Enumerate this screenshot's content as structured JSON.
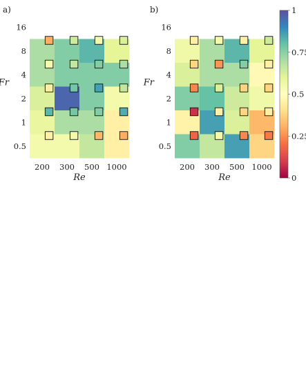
{
  "chart_data": [
    {
      "type": "heatmap",
      "panel_label": "a)",
      "xlabel": "Re",
      "ylabel": "Fr",
      "x_ticklabels": [
        "200",
        "300",
        "500",
        "1000"
      ],
      "y_ticklabels": [
        "16",
        "8",
        "4",
        "2",
        "1",
        "0.5"
      ],
      "rows_Fr_top_to_bottom": [
        "8",
        "4",
        "2",
        "1",
        "0.5"
      ],
      "cells": [
        [
          0.7,
          0.76,
          0.82,
          0.6
        ],
        [
          0.7,
          0.76,
          0.76,
          0.76
        ],
        [
          0.62,
          0.96,
          0.76,
          0.55
        ],
        [
          0.58,
          0.7,
          0.7,
          0.45
        ],
        [
          0.55,
          0.55,
          0.66,
          0.45
        ]
      ],
      "square_markers": [
        [
          0.3,
          0.64,
          0.55,
          0.62
        ],
        [
          0.55,
          0.66,
          0.76,
          0.7
        ],
        [
          0.45,
          0.78,
          0.86,
          0.66
        ],
        [
          0.82,
          0.78,
          0.76,
          0.84
        ],
        [
          0.45,
          0.55,
          0.32,
          0.3
        ]
      ]
    },
    {
      "type": "heatmap",
      "panel_label": "b)",
      "xlabel": "Re",
      "ylabel": "Fr",
      "x_ticklabels": [
        "200",
        "300",
        "500",
        "1000"
      ],
      "y_ticklabels": [
        "16",
        "8",
        "4",
        "2",
        "1",
        "0.5"
      ],
      "rows_Fr_top_to_bottom": [
        "8",
        "4",
        "2",
        "1",
        "0.5"
      ],
      "cells": [
        [
          0.56,
          0.7,
          0.82,
          0.6
        ],
        [
          0.62,
          0.7,
          0.7,
          0.48
        ],
        [
          0.76,
          0.8,
          0.64,
          0.56
        ],
        [
          0.46,
          0.86,
          0.62,
          0.32
        ],
        [
          0.76,
          0.66,
          0.86,
          0.38
        ]
      ],
      "square_markers": [
        [
          0.45,
          0.55,
          0.45,
          0.64
        ],
        [
          0.38,
          0.26,
          0.76,
          0.45
        ],
        [
          0.24,
          0.62,
          0.38,
          0.38
        ],
        [
          0.08,
          0.45,
          0.38,
          0.45
        ],
        [
          0.18,
          0.55,
          0.24,
          0.22
        ]
      ]
    }
  ],
  "colorbar": {
    "colormap": "Spectral",
    "range": [
      0,
      1
    ],
    "tick_labels": [
      "0",
      "0.25",
      "0.5",
      "0.75",
      "1"
    ],
    "tick_values": [
      0,
      0.25,
      0.5,
      0.75,
      1
    ]
  }
}
